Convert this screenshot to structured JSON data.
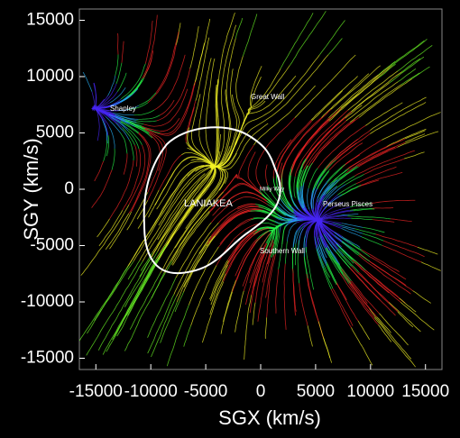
{
  "chart_data": {
    "type": "streamline",
    "x_label": "SGX (km/s)",
    "y_label": "SGY (km/s)",
    "xlim": [
      -16500,
      16500
    ],
    "ylim": [
      -16000,
      16000
    ],
    "xticks": [
      -15000,
      -10000,
      -5000,
      0,
      5000,
      10000,
      15000
    ],
    "yticks": [
      -15000,
      -10000,
      -5000,
      0,
      5000,
      10000,
      15000
    ],
    "annotations": [
      "Shapley",
      "Great Wall",
      "Milky Way",
      "LANIAKEA",
      "Perseus Pisces",
      "Southern Wall"
    ]
  }
}
